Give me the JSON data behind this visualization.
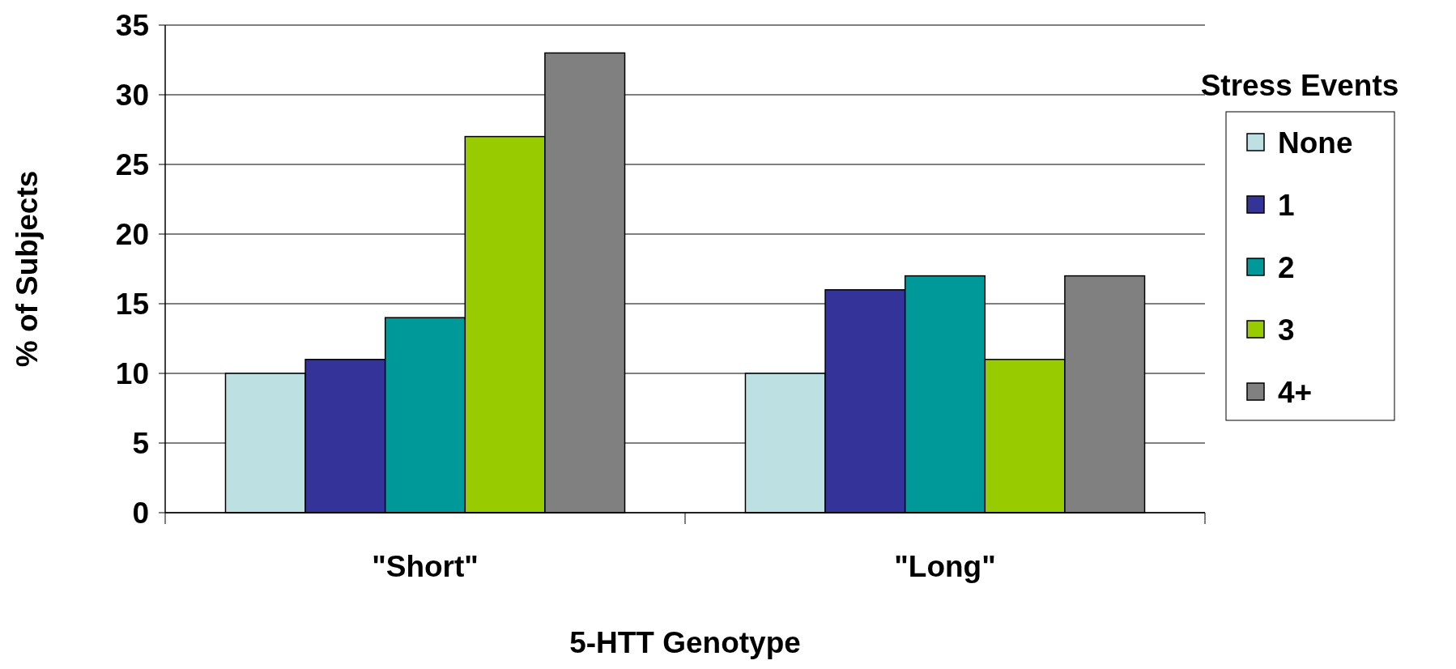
{
  "chart_data": {
    "type": "bar",
    "xlabel": "5-HTT Genotype",
    "ylabel": "% of Subjects",
    "legend_title": "Stress Events",
    "categories": [
      "\"Short\"",
      "\"Long\""
    ],
    "series": [
      {
        "name": "None",
        "color": "#bde0e3",
        "values": [
          10,
          10
        ]
      },
      {
        "name": "1",
        "color": "#333399",
        "values": [
          11,
          16
        ]
      },
      {
        "name": "2",
        "color": "#009999",
        "values": [
          14,
          17
        ]
      },
      {
        "name": "3",
        "color": "#99cc00",
        "values": [
          27,
          11
        ]
      },
      {
        "name": "4+",
        "color": "#808080",
        "values": [
          33,
          17
        ]
      }
    ],
    "ylim": [
      0,
      35
    ],
    "yticks": [
      0,
      5,
      10,
      15,
      20,
      25,
      30,
      35
    ],
    "grid": "y",
    "legend": "right"
  }
}
